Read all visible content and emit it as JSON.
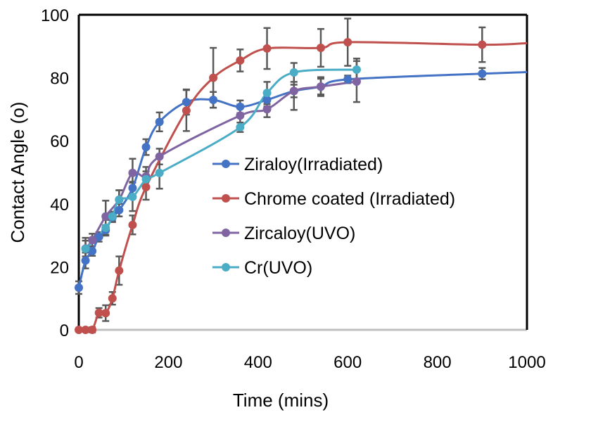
{
  "chart_data": {
    "type": "line",
    "title": "",
    "xlabel": "Time (mins)",
    "ylabel": "Contact Angle (o)",
    "xlim": [
      0,
      1000
    ],
    "ylim": [
      0,
      100
    ],
    "xticks": [
      0,
      200,
      400,
      600,
      800,
      1000
    ],
    "yticks": [
      0,
      20,
      40,
      60,
      80,
      100
    ],
    "xtick_labels": [
      "0",
      "200",
      "400",
      "600",
      "800",
      "1000"
    ],
    "ytick_labels": [
      "0",
      "20",
      "40",
      "60",
      "80",
      "100"
    ],
    "grid": false,
    "legend_position": "center-right",
    "series": [
      {
        "name": "Ziraloy(Irradiated)",
        "color": "#4472C4",
        "x": [
          0,
          15,
          30,
          45,
          60,
          75,
          90,
          120,
          150,
          180,
          240,
          300,
          360,
          420,
          480,
          540,
          600,
          900
        ],
        "y": [
          13.4,
          22,
          25,
          29.5,
          31.7,
          35.7,
          38,
          45,
          58,
          66,
          72.3,
          73,
          70.8,
          73,
          75.8,
          77.2,
          79.5,
          81.3
        ],
        "err": [
          2,
          2.5,
          1.5,
          1.5,
          1.5,
          1.5,
          2,
          2,
          2.5,
          3,
          4,
          2.5,
          2,
          2,
          2,
          2.5,
          1.2,
          1.8
        ],
        "tail": [
          1000,
          81.8
        ]
      },
      {
        "name": "Chrome coated (Irradiated)",
        "color": "#C0504D",
        "x": [
          0,
          15,
          30,
          45,
          60,
          75,
          90,
          120,
          150,
          240,
          300,
          360,
          420,
          540,
          600,
          900
        ],
        "y": [
          0,
          0,
          0,
          5.4,
          5.3,
          10,
          18.8,
          33.3,
          45.3,
          69.6,
          80,
          85.5,
          89.3,
          89.5,
          91.3,
          90.5
        ],
        "err": [
          0,
          0,
          0.8,
          1.5,
          2.5,
          2,
          4.5,
          3,
          4,
          6.5,
          9.5,
          3.5,
          6.5,
          6,
          7.5,
          5.5
        ],
        "tail": [
          1000,
          91
        ]
      },
      {
        "name": "Zircaloy(UVO)",
        "color": "#8064A2",
        "x": [
          15,
          30,
          60,
          90,
          120,
          150,
          180,
          360,
          420,
          480,
          540,
          620
        ],
        "y": [
          25.8,
          28.5,
          36,
          41.3,
          49.8,
          48.7,
          55,
          68,
          70,
          75.8,
          77.2,
          78.8
        ],
        "err": [
          2.5,
          2,
          5,
          3,
          4.5,
          3,
          2.5,
          3.5,
          2.5,
          6,
          3,
          6.5
        ]
      },
      {
        "name": "Cr(UVO)",
        "color": "#4BACC6",
        "x": [
          15,
          60,
          75,
          90,
          120,
          150,
          180,
          360,
          420,
          480,
          620
        ],
        "y": [
          25.7,
          32.4,
          36,
          41.3,
          42.2,
          47.8,
          49.8,
          64.3,
          75.2,
          81.7,
          82.6
        ],
        "err": [
          3.5,
          2.5,
          1.5,
          3,
          4.5,
          2.5,
          5,
          1.5,
          3.5,
          3,
          3.5
        ]
      }
    ]
  }
}
